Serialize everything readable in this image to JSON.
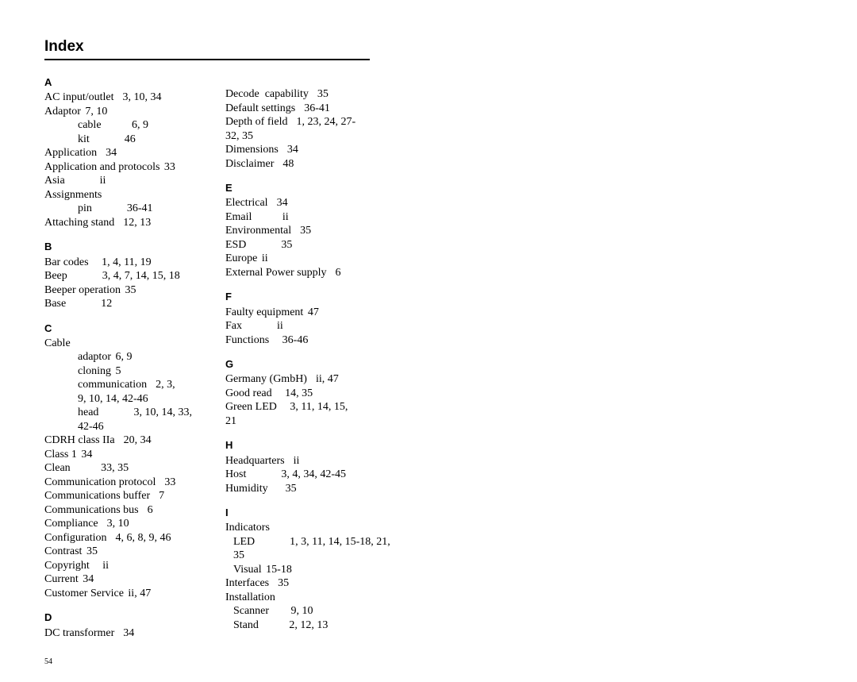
{
  "title": "Index",
  "pageNumber": "54",
  "col1": [
    {
      "type": "letter",
      "text": "A"
    },
    {
      "type": "entry",
      "term": "AC input/outlet",
      "pages": "3, 10, 34"
    },
    {
      "type": "entry",
      "term": "Adaptor",
      "pages": "7, 10",
      "tight": true
    },
    {
      "type": "sub",
      "term": "cable",
      "pages": "6, 9"
    },
    {
      "type": "sub",
      "term": "kit",
      "pages": "46"
    },
    {
      "type": "entry",
      "term": "Application",
      "pages": "34"
    },
    {
      "type": "entry",
      "term": "Application and protocols",
      "pages": "33",
      "tight": true
    },
    {
      "type": "entry",
      "term": "Asia",
      "pages": "ii"
    },
    {
      "type": "entry",
      "term": "Assignments",
      "pages": ""
    },
    {
      "type": "sub",
      "term": "pin",
      "pages": "36-41"
    },
    {
      "type": "entry",
      "term": "Attaching stand",
      "pages": "12, 13"
    },
    {
      "type": "letter",
      "text": "B"
    },
    {
      "type": "entry",
      "term": "Bar codes",
      "pages": "1, 4, 11, 19"
    },
    {
      "type": "entry",
      "term": "Beep",
      "pages": "3, 4, 7, 14, 15, 18"
    },
    {
      "type": "entry",
      "term": "Beeper operation",
      "pages": "35",
      "tight": true
    },
    {
      "type": "entry",
      "term": "Base",
      "pages": "12"
    },
    {
      "type": "letter",
      "text": "C"
    },
    {
      "type": "entry",
      "term": "Cable",
      "pages": ""
    },
    {
      "type": "sub",
      "term": "adaptor",
      "pages": "6, 9",
      "tight": true
    },
    {
      "type": "sub",
      "term": "cloning",
      "pages": "5",
      "tight": true
    },
    {
      "type": "sub",
      "term": "communication",
      "pages": "2, 3,"
    },
    {
      "type": "sub",
      "term": "9, 10, 14, 42-46",
      "pages": ""
    },
    {
      "type": "sub",
      "term": "head",
      "pages": "3, 10, 14, 33,"
    },
    {
      "type": "sub",
      "term": "42-46",
      "pages": ""
    },
    {
      "type": "entry",
      "term": "CDRH class IIa",
      "pages": "20, 34"
    },
    {
      "type": "entry",
      "term": "Class 1",
      "pages": "34",
      "tight": true
    },
    {
      "type": "entry",
      "term": "Clean",
      "pages": "33, 35"
    },
    {
      "type": "entry",
      "term": "Communication protocol",
      "pages": "33"
    },
    {
      "type": "entry",
      "term": "Communications buffer",
      "pages": "7"
    },
    {
      "type": "entry",
      "term": "Communications bus",
      "pages": "6"
    },
    {
      "type": "entry",
      "term": "Compliance",
      "pages": "3, 10"
    },
    {
      "type": "entry",
      "term": "Configuration",
      "pages": "4, 6, 8, 9, 46"
    },
    {
      "type": "entry",
      "term": "Contrast",
      "pages": "35",
      "tight": true
    },
    {
      "type": "entry",
      "term": "Copyright",
      "pages": "ii"
    },
    {
      "type": "entry",
      "term": "Current",
      "pages": "34",
      "tight": true
    },
    {
      "type": "entry",
      "term": "Customer Service",
      "pages": "ii, 47",
      "tight": true
    },
    {
      "type": "letter",
      "text": "D"
    },
    {
      "type": "entry",
      "term": "DC transformer",
      "pages": "34"
    }
  ],
  "col2": [
    {
      "type": "spacer"
    },
    {
      "type": "entry",
      "term": "Decode  capability",
      "pages": "35"
    },
    {
      "type": "entry",
      "term": "Default settings",
      "pages": "36-41"
    },
    {
      "type": "entry",
      "term": "Depth of field",
      "pages": "1, 23, 24, 27-"
    },
    {
      "type": "entry",
      "term": "32, 35",
      "pages": ""
    },
    {
      "type": "entry",
      "term": "Dimensions",
      "pages": "34"
    },
    {
      "type": "entry",
      "term": "Disclaimer",
      "pages": "48"
    },
    {
      "type": "letter",
      "text": "E"
    },
    {
      "type": "entry",
      "term": "Electrical",
      "pages": "34"
    },
    {
      "type": "entry",
      "term": "Email",
      "pages": "ii"
    },
    {
      "type": "entry",
      "term": "Environmental",
      "pages": "35"
    },
    {
      "type": "entry",
      "term": "ESD",
      "pages": "35"
    },
    {
      "type": "entry",
      "term": "Europe",
      "pages": "ii",
      "tight": true
    },
    {
      "type": "entry",
      "term": "External Power supply",
      "pages": "6"
    },
    {
      "type": "letter",
      "text": "F"
    },
    {
      "type": "entry",
      "term": "Faulty equipment",
      "pages": "47",
      "tight": true
    },
    {
      "type": "entry",
      "term": "Fax",
      "pages": "ii"
    },
    {
      "type": "entry",
      "term": "Functions",
      "pages": "36-46"
    },
    {
      "type": "letter",
      "text": "G"
    },
    {
      "type": "entry",
      "term": "Germany (GmbH)",
      "pages": "ii, 47"
    },
    {
      "type": "entry",
      "term": "Good read",
      "pages": "14, 35"
    },
    {
      "type": "entry",
      "term": "Green LED",
      "pages": "3, 11, 14, 15,"
    },
    {
      "type": "entry",
      "term": "21",
      "pages": ""
    },
    {
      "type": "letter",
      "text": "H"
    },
    {
      "type": "entry",
      "term": "Headquarters",
      "pages": "ii"
    },
    {
      "type": "entry",
      "term": "Host",
      "pages": "3, 4, 34, 42-45"
    },
    {
      "type": "entry",
      "term": "Humidity",
      "pages": "35"
    },
    {
      "type": "letter",
      "text": "I"
    },
    {
      "type": "entry",
      "term": "Indicators",
      "pages": ""
    },
    {
      "type": "sub2",
      "term": "LED",
      "pages": "1, 3, 11, 14, 15-18, 21,"
    },
    {
      "type": "sub2",
      "term": "35",
      "pages": ""
    },
    {
      "type": "sub2",
      "term": "Visual",
      "pages": "15-18",
      "tight": true
    },
    {
      "type": "entry",
      "term": "Interfaces",
      "pages": "35"
    },
    {
      "type": "entry",
      "term": "Installation",
      "pages": ""
    },
    {
      "type": "sub2",
      "term": "Scanner",
      "pages": "9, 10"
    },
    {
      "type": "sub2",
      "term": "Stand",
      "pages": "2, 12, 13"
    }
  ]
}
